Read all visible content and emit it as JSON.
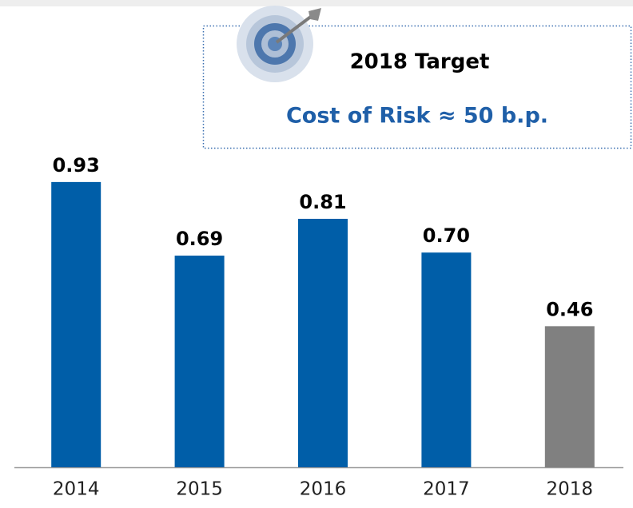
{
  "chart_data": {
    "type": "bar",
    "annotation": {
      "title": "2018 Target",
      "text": "Cost of Risk ≈ 50 b.p."
    },
    "categories": [
      "2014",
      "2015",
      "2016",
      "2017",
      "2018"
    ],
    "values": [
      0.93,
      0.69,
      0.81,
      0.7,
      0.46
    ],
    "value_labels": [
      "0.93",
      "0.69",
      "0.81",
      "0.70",
      "0.46"
    ],
    "colors": [
      "#005ea8",
      "#005ea8",
      "#005ea8",
      "#005ea8",
      "#808080"
    ],
    "ylim": [
      0,
      1.0
    ]
  }
}
